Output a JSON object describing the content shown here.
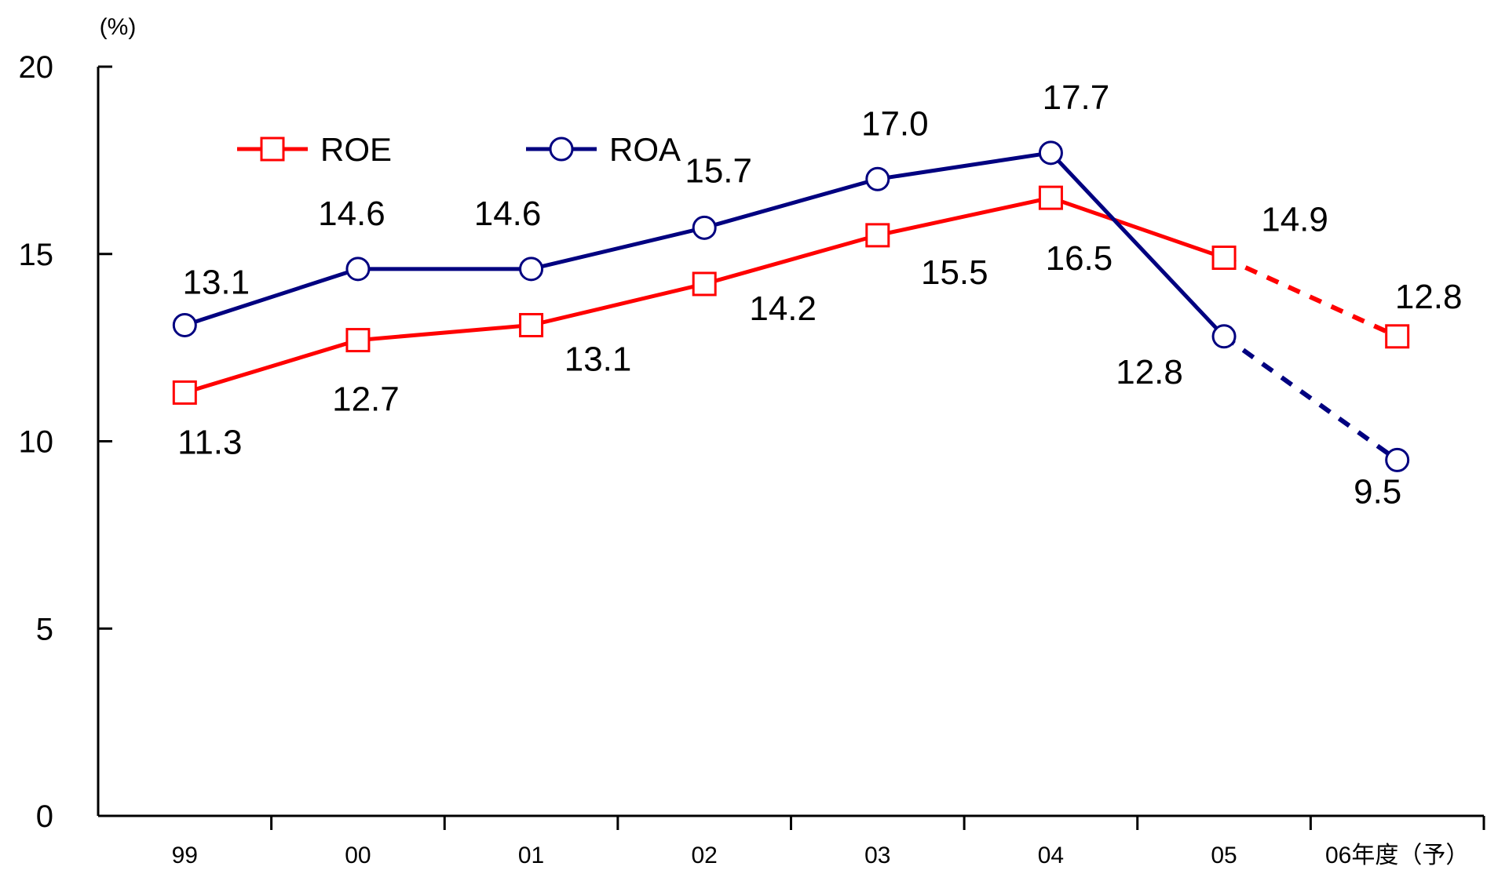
{
  "chart_data": {
    "type": "line",
    "unit_label": "(%)",
    "categories": [
      "99",
      "00",
      "01",
      "02",
      "03",
      "04",
      "05",
      "06年度（予）"
    ],
    "ylim": [
      0,
      20
    ],
    "yticks": [
      "0",
      "5",
      "10",
      "15",
      "20"
    ],
    "grid": false,
    "legend_position": "top-left",
    "forecast_from_index": 6,
    "series": [
      {
        "name": "ROE",
        "color": "#ff0000",
        "marker": "square",
        "values": [
          11.3,
          12.7,
          13.1,
          14.2,
          15.5,
          16.5,
          14.9,
          12.8
        ],
        "labels": [
          "11.3",
          "12.7",
          "13.1",
          "14.2",
          "15.5",
          "16.5",
          "14.9",
          "12.8"
        ]
      },
      {
        "name": "ROA",
        "color": "#000080",
        "marker": "circle",
        "values": [
          13.1,
          14.6,
          14.6,
          15.7,
          17.0,
          17.7,
          12.8,
          9.5
        ],
        "labels": [
          "13.1",
          "14.6",
          "14.6",
          "15.7",
          "17.0",
          "17.7",
          "12.8",
          "9.5"
        ]
      }
    ]
  }
}
